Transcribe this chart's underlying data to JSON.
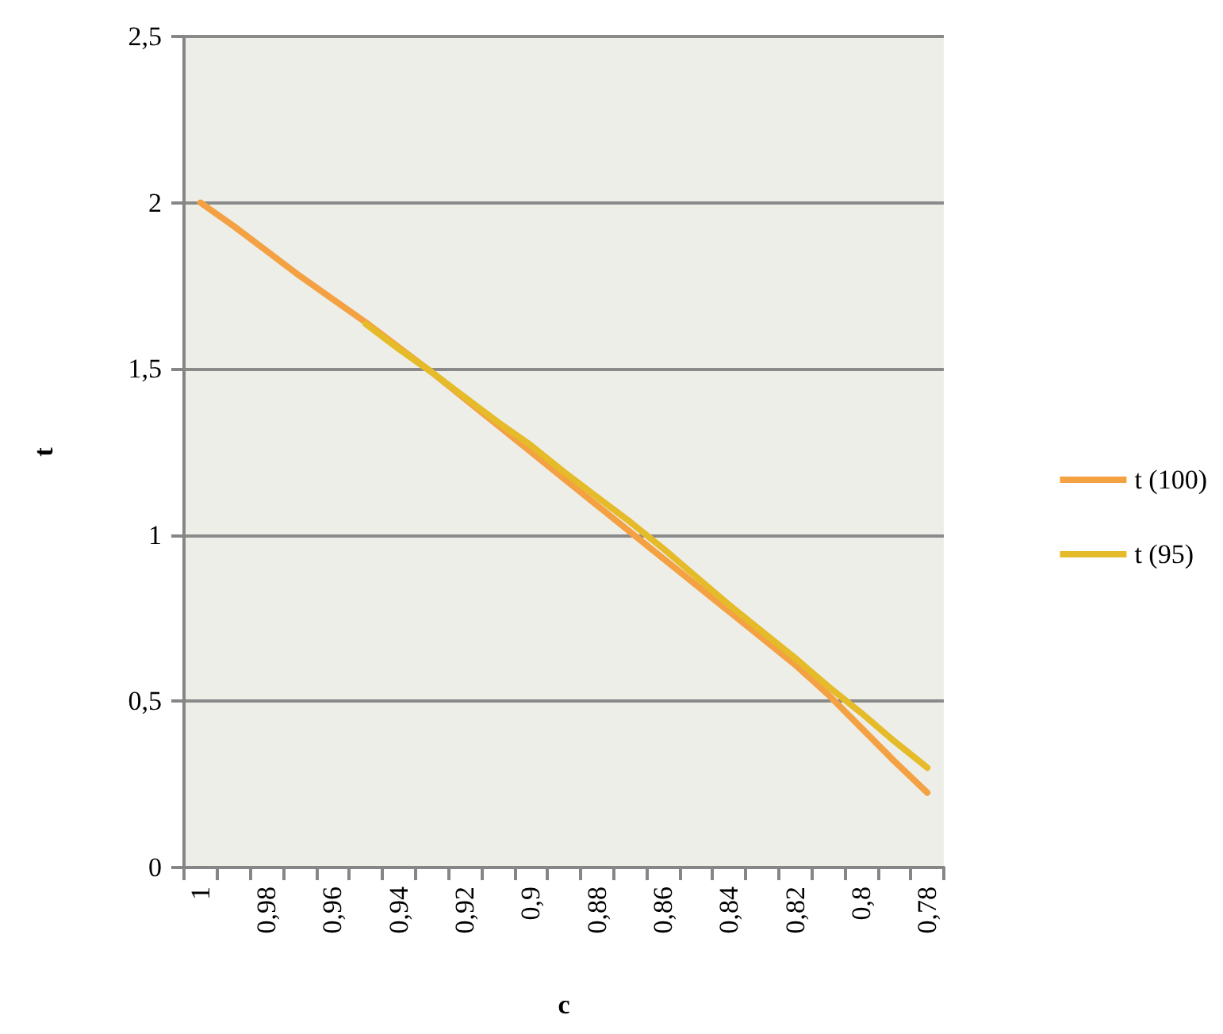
{
  "chart_data": {
    "type": "line",
    "xlabel": "c",
    "ylabel": "t",
    "categories": [
      "1",
      null,
      "0,98",
      null,
      "0,96",
      null,
      "0,94",
      null,
      "0,92",
      null,
      "0,9",
      null,
      "0,88",
      null,
      "0,86",
      null,
      "0,84",
      null,
      "0,82",
      null,
      "0,8",
      null,
      "0,78"
    ],
    "series": [
      {
        "name": "t (100)",
        "color": "#f4a143",
        "values": [
          2.0,
          1.93,
          1.855,
          1.78,
          1.71,
          1.64,
          1.565,
          1.49,
          1.41,
          1.33,
          1.25,
          1.17,
          1.09,
          1.01,
          0.93,
          0.85,
          0.77,
          0.69,
          0.61,
          0.52,
          0.42,
          0.32,
          0.225
        ]
      },
      {
        "name": "t (95)",
        "color": "#e5bb2a",
        "values": [
          null,
          null,
          null,
          null,
          null,
          1.635,
          1.56,
          1.49,
          1.415,
          1.34,
          1.27,
          1.19,
          1.115,
          1.04,
          0.96,
          0.875,
          0.79,
          0.71,
          0.63,
          0.545,
          0.465,
          0.38,
          0.3
        ]
      }
    ],
    "ylim": [
      0,
      2.5
    ],
    "yticks": [
      {
        "value": 0,
        "label": "0"
      },
      {
        "value": 0.5,
        "label": "0,5"
      },
      {
        "value": 1,
        "label": "1"
      },
      {
        "value": 1.5,
        "label": "1,5"
      },
      {
        "value": 2,
        "label": "2"
      },
      {
        "value": 2.5,
        "label": "2,5"
      }
    ],
    "grid": "y",
    "legend": "right",
    "marker": "none",
    "line_style": "solid"
  }
}
